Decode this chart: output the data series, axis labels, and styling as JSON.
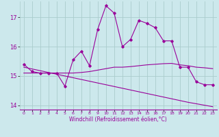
{
  "xlabel": "Windchill (Refroidissement éolien,°C)",
  "background_color": "#cce8ec",
  "line_color": "#990099",
  "grid_color": "#aacccc",
  "x_values": [
    0,
    1,
    2,
    3,
    4,
    5,
    6,
    7,
    8,
    9,
    10,
    11,
    12,
    13,
    14,
    15,
    16,
    17,
    18,
    19,
    20,
    21,
    22,
    23
  ],
  "y_main": [
    15.4,
    15.15,
    15.1,
    15.1,
    15.1,
    14.65,
    15.55,
    15.85,
    15.35,
    16.6,
    17.4,
    17.15,
    16.0,
    16.25,
    16.9,
    16.8,
    16.65,
    16.2,
    16.2,
    15.3,
    15.3,
    14.8,
    14.7,
    14.7
  ],
  "y_trend1": [
    15.1,
    15.1,
    15.1,
    15.1,
    15.1,
    15.1,
    15.1,
    15.12,
    15.15,
    15.2,
    15.25,
    15.3,
    15.3,
    15.32,
    15.35,
    15.38,
    15.4,
    15.42,
    15.43,
    15.38,
    15.35,
    15.3,
    15.28,
    15.25
  ],
  "y_trend2": [
    15.3,
    15.24,
    15.18,
    15.12,
    15.06,
    15.0,
    14.94,
    14.88,
    14.82,
    14.76,
    14.7,
    14.64,
    14.58,
    14.52,
    14.46,
    14.4,
    14.34,
    14.28,
    14.22,
    14.16,
    14.1,
    14.05,
    14.0,
    13.95
  ],
  "ylim": [
    13.85,
    17.55
  ],
  "yticks": [
    14,
    15,
    16,
    17
  ],
  "xlim": [
    -0.5,
    23.5
  ]
}
